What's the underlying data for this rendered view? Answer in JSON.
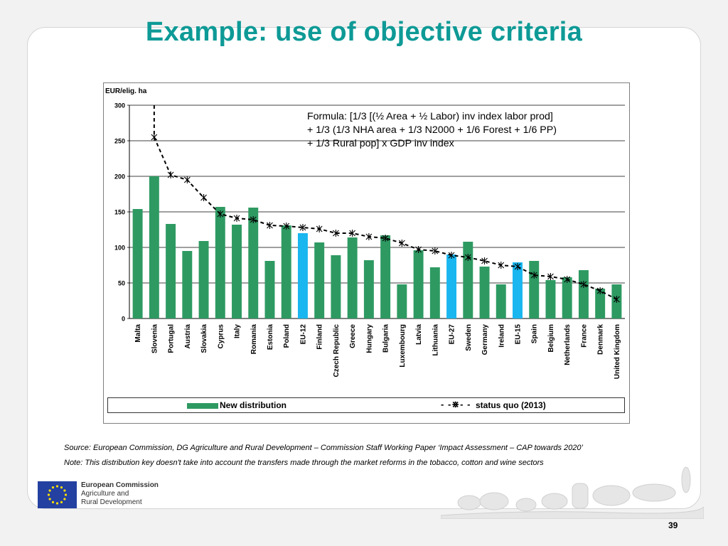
{
  "slide": {
    "title": "Example: use of objective criteria",
    "page_number": "39"
  },
  "formula": {
    "line1": "Formula: [1/3 [(½ Area + ½ Labor) inv index labor prod]",
    "line2": "+ 1/3 (1/3 NHA area + 1/3 N2000 + 1/6 Forest + 1/6 PP)",
    "line3": "+ 1/3 Rural pop] x GDP inv index"
  },
  "legend": {
    "bar_label": "New distribution",
    "line_symbol": "- -⋇- -",
    "line_label": "status quo (2013)"
  },
  "footer": {
    "source": "Source: European Commission, DG Agriculture and Rural Development – Commission Staff Working Paper ‘Impact Assessment – CAP towards 2020’",
    "note": "Note: This distribution key doesn't take into account the transfers made through the market reforms in the tobacco, cotton and wine sectors",
    "logo_line1": "European Commission",
    "logo_line2": "Agriculture and",
    "logo_line3": "Rural Development"
  },
  "colors": {
    "bar": "#2e9a62",
    "bar_highlight": "#19b6ef",
    "title": "#0e9a96"
  },
  "chart_data": {
    "type": "bar",
    "ylabel": "EUR/elig. ha",
    "ylim": [
      0,
      300
    ],
    "yticks": [
      0,
      50,
      100,
      150,
      200,
      250,
      300
    ],
    "grid": true,
    "legend_position": "bottom",
    "categories": [
      "Malta",
      "Slovenia",
      "Portugal",
      "Austria",
      "Slovakia",
      "Cyprus",
      "Italy",
      "Romania",
      "Estonia",
      "Poland",
      "EU-12",
      "Finland",
      "Czech Republic",
      "Greece",
      "Hungary",
      "Bulgaria",
      "Luxembourg",
      "Latvia",
      "Lithuania",
      "EU-27",
      "Sweden",
      "Germany",
      "Ireland",
      "EU-15",
      "Spain",
      "Belgium",
      "Netherlands",
      "France",
      "Denmark",
      "United Kingdom"
    ],
    "highlight": [
      "EU-12",
      "EU-27",
      "EU-15"
    ],
    "series": [
      {
        "name": "New distribution",
        "kind": "bar",
        "values": [
          154,
          200,
          133,
          95,
          109,
          157,
          132,
          156,
          81,
          131,
          120,
          107,
          89,
          114,
          82,
          117,
          48,
          96,
          72,
          90,
          108,
          73,
          48,
          79,
          81,
          54,
          58,
          68,
          42,
          48
        ]
      },
      {
        "name": "status quo (2013)",
        "kind": "line",
        "lead_in": 300,
        "values": [
          null,
          255,
          202,
          195,
          170,
          147,
          141,
          139,
          131,
          130,
          128,
          126,
          120,
          120,
          115,
          113,
          106,
          97,
          95,
          89,
          86,
          81,
          75,
          73,
          61,
          59,
          55,
          48,
          39,
          27
        ]
      }
    ]
  }
}
